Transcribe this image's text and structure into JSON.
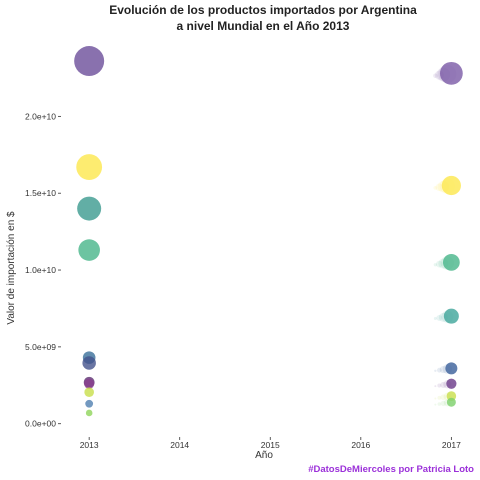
{
  "chart_data": {
    "type": "scatter",
    "title_lines": [
      "Evolución de los productos importados por Argentina",
      "a nivel Mundial en el Año 2013"
    ],
    "xlabel": "Año",
    "ylabel": "Valor de importación en $",
    "caption": "#DatosDeMiercoles por Patricia Loto",
    "caption_color": "#9b30d9",
    "x_ticks": [
      2013,
      2014,
      2015,
      2016,
      2017
    ],
    "x_tick_labels": [
      "2013",
      "2014",
      "2015",
      "2016",
      "2017"
    ],
    "xlim": [
      2012.7,
      2017.25
    ],
    "y_ticks": [
      0,
      5000000000,
      10000000000,
      15000000000,
      20000000000
    ],
    "y_tick_labels": [
      "0.0e+00",
      "5.0e+09",
      "1.0e+10",
      "1.5e+10",
      "2.0e+10"
    ],
    "ylim": [
      -800000000,
      25100000000
    ],
    "grid": false,
    "legend": "none",
    "points": [
      {
        "x": 2013,
        "y": 23600000000,
        "size": 1.0,
        "color": "#6c4d9a"
      },
      {
        "x": 2013,
        "y": 16700000000,
        "size": 0.86,
        "color": "#fde74c"
      },
      {
        "x": 2013,
        "y": 14000000000,
        "size": 0.8,
        "color": "#3b9a8f"
      },
      {
        "x": 2013,
        "y": 11300000000,
        "size": 0.72,
        "color": "#47b58a"
      },
      {
        "x": 2013,
        "y": 4300000000,
        "size": 0.42,
        "color": "#3a6f9a"
      },
      {
        "x": 2013,
        "y": 3950000000,
        "size": 0.45,
        "color": "#44538c"
      },
      {
        "x": 2013,
        "y": 2700000000,
        "size": 0.36,
        "color": "#5b2f70"
      },
      {
        "x": 2013,
        "y": 2600000000,
        "size": 0.34,
        "color": "#8a3f8f"
      },
      {
        "x": 2013,
        "y": 2050000000,
        "size": 0.32,
        "color": "#c8de4a"
      },
      {
        "x": 2013,
        "y": 1300000000,
        "size": 0.26,
        "color": "#5080b0"
      },
      {
        "x": 2013,
        "y": 700000000,
        "size": 0.22,
        "color": "#8fd45a"
      },
      {
        "x": 2017,
        "y": 22800000000,
        "size": 0.76,
        "color": "#7a5aa6"
      },
      {
        "x": 2017,
        "y": 15500000000,
        "size": 0.64,
        "color": "#fde74c"
      },
      {
        "x": 2017,
        "y": 10500000000,
        "size": 0.56,
        "color": "#47b58a"
      },
      {
        "x": 2017,
        "y": 7000000000,
        "size": 0.5,
        "color": "#3ea59a"
      },
      {
        "x": 2017,
        "y": 3600000000,
        "size": 0.4,
        "color": "#3a5f9a"
      },
      {
        "x": 2017,
        "y": 2600000000,
        "size": 0.34,
        "color": "#6a3a88"
      },
      {
        "x": 2017,
        "y": 1800000000,
        "size": 0.32,
        "color": "#c8de4a"
      },
      {
        "x": 2017,
        "y": 1400000000,
        "size": 0.3,
        "color": "#7ccf6a"
      }
    ]
  }
}
